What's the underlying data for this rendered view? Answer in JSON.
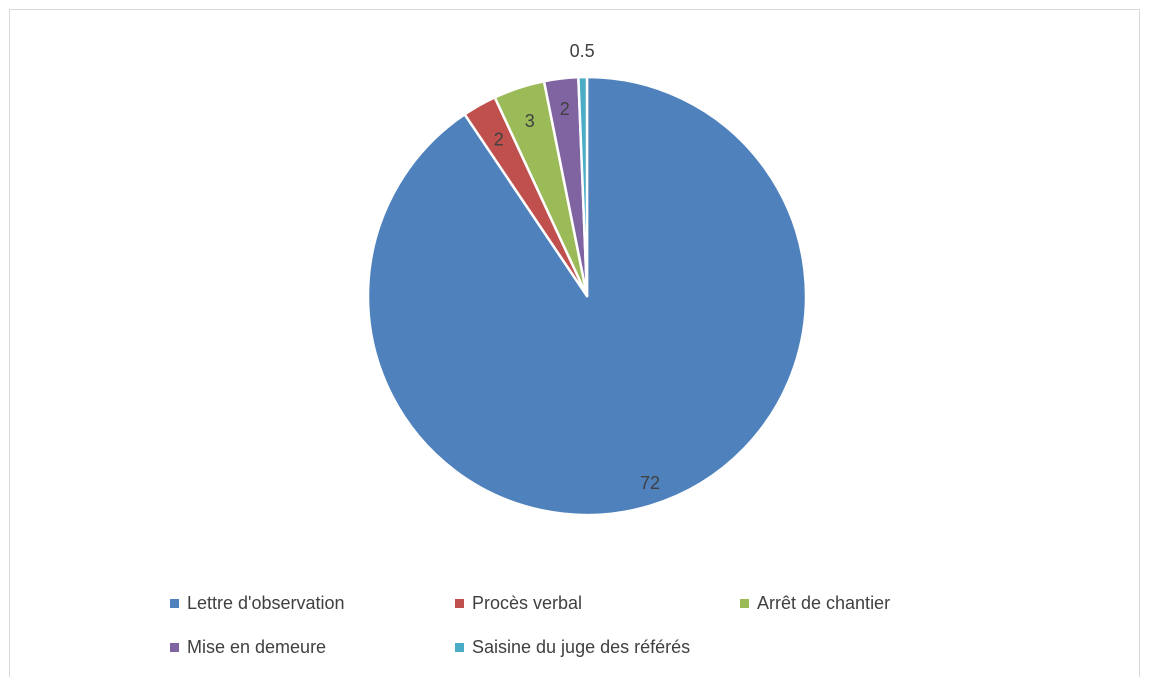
{
  "chart_data": {
    "type": "pie",
    "categories": [
      "Lettre d'observation",
      "Procès verbal",
      "Arrêt de chantier",
      "Mise en demeure",
      "Saisine du juge des référés"
    ],
    "values": [
      72,
      2,
      3,
      2,
      0.5
    ],
    "data_labels": [
      "72",
      "2",
      "3",
      "2",
      "0.5"
    ],
    "colors": [
      "#4f81bd",
      "#c0504d",
      "#9bbb59",
      "#8064a2",
      "#4bacc6"
    ],
    "start_angle": "12 o'clock, clockwise",
    "legend_position": "bottom",
    "title": ""
  }
}
